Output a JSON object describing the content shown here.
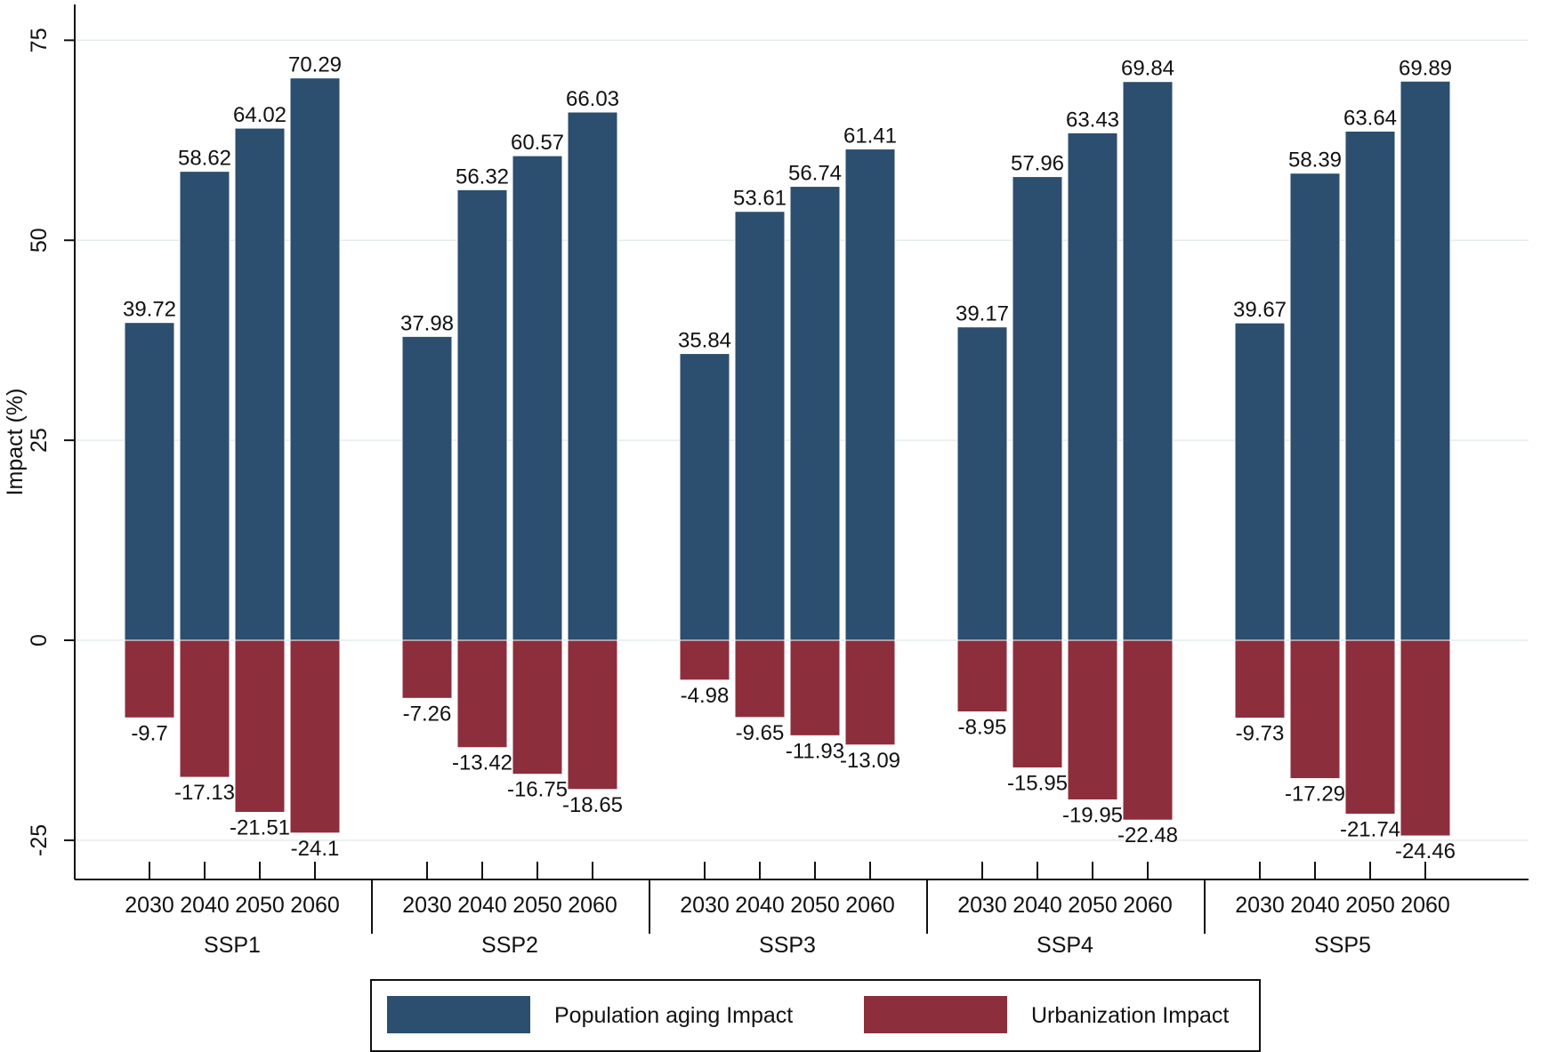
{
  "chart_data": {
    "type": "bar",
    "title": "",
    "xlabel": "",
    "ylabel": "Impact (%)",
    "ylim": [
      -30,
      80
    ],
    "yticks": [
      -25,
      0,
      25,
      50,
      75
    ],
    "ytick_labels": [
      "-25",
      "0",
      "25",
      "50",
      "75"
    ],
    "grid": true,
    "legend_position": "bottom",
    "groups": [
      "SSP1",
      "SSP2",
      "SSP3",
      "SSP4",
      "SSP5"
    ],
    "categories": [
      "2030",
      "2040",
      "2050",
      "2060"
    ],
    "series": [
      {
        "name": "Population aging Impact",
        "color": "#2c4e6f",
        "values": [
          [
            39.72,
            58.62,
            64.02,
            70.29
          ],
          [
            37.98,
            56.32,
            60.57,
            66.03
          ],
          [
            35.84,
            53.61,
            56.74,
            61.41
          ],
          [
            39.17,
            57.96,
            63.43,
            69.84
          ],
          [
            39.67,
            58.39,
            63.64,
            69.89
          ]
        ],
        "labels": [
          [
            "39.72",
            "58.62",
            "64.02",
            "70.29"
          ],
          [
            "37.98",
            "56.32",
            "60.57",
            "66.03"
          ],
          [
            "35.84",
            "53.61",
            "56.74",
            "61.41"
          ],
          [
            "39.17",
            "57.96",
            "63.43",
            "69.84"
          ],
          [
            "39.67",
            "58.39",
            "63.64",
            "69.89"
          ]
        ]
      },
      {
        "name": "Urbanization Impact",
        "color": "#8d2e3d",
        "values": [
          [
            -9.7,
            -17.13,
            -21.51,
            -24.1
          ],
          [
            -7.26,
            -13.42,
            -16.75,
            -18.65
          ],
          [
            -4.98,
            -9.65,
            -11.93,
            -13.09
          ],
          [
            -8.95,
            -15.95,
            -19.95,
            -22.48
          ],
          [
            -9.73,
            -17.29,
            -21.74,
            -24.46
          ]
        ],
        "labels": [
          [
            "-9.7",
            "-17.13",
            "-21.51",
            "-24.1"
          ],
          [
            "-7.26",
            "-13.42",
            "-16.75",
            "-18.65"
          ],
          [
            "-4.98",
            "-9.65",
            "-11.93",
            "-13.09"
          ],
          [
            "-8.95",
            "-15.95",
            "-19.95",
            "-22.48"
          ],
          [
            "-9.73",
            "-17.29",
            "-21.74",
            "-24.46"
          ]
        ]
      }
    ]
  }
}
